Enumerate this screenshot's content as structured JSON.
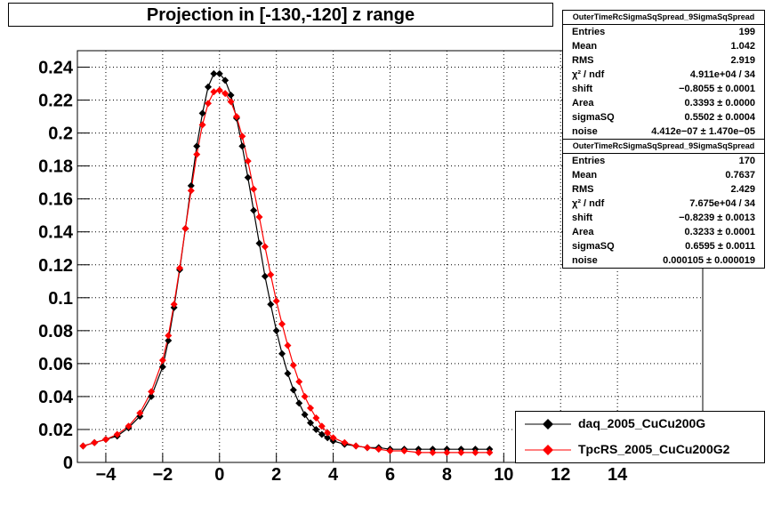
{
  "title": "Projection in [-130,-120] z range",
  "stats": [
    {
      "header": "OuterTimeRcSigmaSqSpread_9SigmaSqSpread",
      "rows": [
        {
          "label": "Entries",
          "value": "199"
        },
        {
          "label": "Mean",
          "value": "1.042"
        },
        {
          "label": "RMS",
          "value": "2.919"
        },
        {
          "label": "χ² / ndf",
          "value": "4.911e+04 / 34"
        },
        {
          "label": "shift",
          "value": "−0.8055 ± 0.0001"
        },
        {
          "label": "Area",
          "value": "0.3393 ± 0.0000"
        },
        {
          "label": "sigmaSQ",
          "value": "0.5502 ± 0.0004"
        },
        {
          "label": "noise",
          "value": "4.412e−07 ± 1.470e−05"
        }
      ]
    },
    {
      "header": "OuterTimeRcSigmaSqSpread_9SigmaSqSpread",
      "rows": [
        {
          "label": "Entries",
          "value": "170"
        },
        {
          "label": "Mean",
          "value": "0.7637"
        },
        {
          "label": "RMS",
          "value": "2.429"
        },
        {
          "label": "χ² / ndf",
          "value": "7.675e+04 / 34"
        },
        {
          "label": "shift",
          "value": "−0.8239 ± 0.0013"
        },
        {
          "label": "Area",
          "value": "0.3233 ± 0.0001"
        },
        {
          "label": "sigmaSQ",
          "value": "0.6595 ± 0.0011"
        },
        {
          "label": "noise",
          "value": "0.000105 ± 0.000019"
        }
      ]
    }
  ],
  "legend": [
    {
      "label": "daq_2005_CuCu200G",
      "color": "#000000"
    },
    {
      "label": "TpcRS_2005_CuCu200G2",
      "color": "#ff0000"
    }
  ],
  "chart_data": {
    "type": "scatter",
    "title": "Projection in [-130,-120] z range",
    "xlim": [
      -5,
      17
    ],
    "ylim": [
      0,
      0.25
    ],
    "x_ticks": [
      -4,
      -2,
      0,
      2,
      4,
      6,
      8,
      10,
      12,
      14
    ],
    "y_ticks": [
      0,
      0.02,
      0.04,
      0.06,
      0.08,
      0.1,
      0.12,
      0.14,
      0.16,
      0.18,
      0.2,
      0.22,
      0.24
    ],
    "x_tick_labels": [
      "−4",
      "−2",
      "0",
      "2",
      "4",
      "6",
      "8",
      "10",
      "12",
      "14"
    ],
    "y_tick_labels": [
      "0",
      "0.02",
      "0.04",
      "0.06",
      "0.08",
      "0.1",
      "0.12",
      "0.14",
      "0.16",
      "0.18",
      "0.2",
      "0.22",
      "0.24"
    ],
    "grid": true,
    "series": [
      {
        "name": "daq_2005_CuCu200G",
        "color": "#000000",
        "x": [
          -4.8,
          -4.4,
          -4.0,
          -3.6,
          -3.2,
          -2.8,
          -2.4,
          -2.0,
          -1.8,
          -1.6,
          -1.4,
          -1.2,
          -1.0,
          -0.8,
          -0.6,
          -0.4,
          -0.2,
          0.0,
          0.2,
          0.4,
          0.6,
          0.8,
          1.0,
          1.2,
          1.4,
          1.6,
          1.8,
          2.0,
          2.2,
          2.4,
          2.6,
          2.8,
          3.0,
          3.2,
          3.4,
          3.6,
          3.8,
          4.0,
          4.4,
          4.8,
          5.2,
          5.6,
          6.0,
          6.5,
          7.0,
          7.5,
          8.0,
          8.5,
          9.0,
          9.5
        ],
        "y": [
          0.01,
          0.012,
          0.014,
          0.016,
          0.021,
          0.028,
          0.04,
          0.058,
          0.074,
          0.094,
          0.117,
          0.142,
          0.168,
          0.192,
          0.212,
          0.228,
          0.236,
          0.236,
          0.232,
          0.223,
          0.209,
          0.192,
          0.173,
          0.153,
          0.133,
          0.113,
          0.096,
          0.08,
          0.066,
          0.054,
          0.044,
          0.036,
          0.029,
          0.024,
          0.02,
          0.017,
          0.015,
          0.013,
          0.011,
          0.01,
          0.009,
          0.009,
          0.008,
          0.008,
          0.008,
          0.008,
          0.008,
          0.008,
          0.008,
          0.008
        ]
      },
      {
        "name": "TpcRS_2005_CuCu200G2",
        "color": "#ff0000",
        "x": [
          -4.8,
          -4.4,
          -4.0,
          -3.6,
          -3.2,
          -2.8,
          -2.4,
          -2.0,
          -1.8,
          -1.6,
          -1.4,
          -1.2,
          -1.0,
          -0.8,
          -0.6,
          -0.4,
          -0.2,
          0.0,
          0.2,
          0.4,
          0.6,
          0.8,
          1.0,
          1.2,
          1.4,
          1.6,
          1.8,
          2.0,
          2.2,
          2.4,
          2.6,
          2.8,
          3.0,
          3.2,
          3.4,
          3.6,
          3.8,
          4.0,
          4.4,
          4.8,
          5.2,
          5.6,
          6.0,
          6.5,
          7.0,
          7.5,
          8.0,
          8.5,
          9.0,
          9.5
        ],
        "y": [
          0.01,
          0.012,
          0.014,
          0.017,
          0.022,
          0.03,
          0.043,
          0.062,
          0.077,
          0.096,
          0.118,
          0.142,
          0.165,
          0.187,
          0.205,
          0.218,
          0.225,
          0.226,
          0.224,
          0.219,
          0.21,
          0.198,
          0.183,
          0.166,
          0.149,
          0.131,
          0.114,
          0.098,
          0.084,
          0.071,
          0.059,
          0.049,
          0.04,
          0.033,
          0.027,
          0.022,
          0.018,
          0.015,
          0.012,
          0.01,
          0.009,
          0.008,
          0.007,
          0.007,
          0.006,
          0.006,
          0.006,
          0.006,
          0.006,
          0.006
        ]
      }
    ],
    "fit_curves": [
      {
        "name": "daq_2005_CuCu200G",
        "color": "#000000",
        "peak": 0.236
      },
      {
        "name": "TpcRS_2005_CuCu200G2",
        "color": "#ff0000",
        "peak": 0.226
      }
    ]
  }
}
